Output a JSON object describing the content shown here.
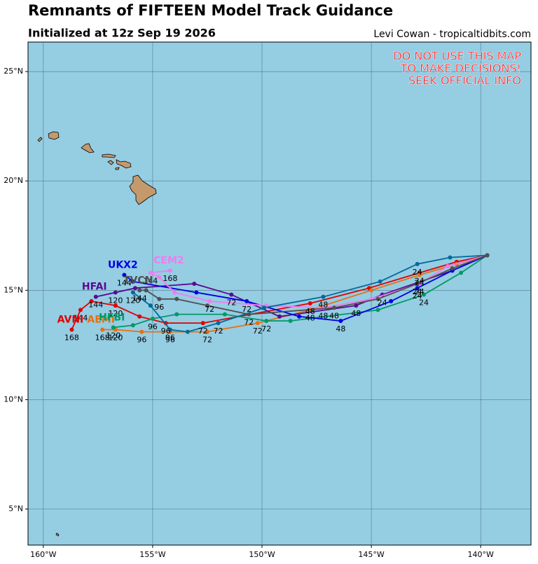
{
  "chart_data": {
    "type": "line",
    "title": "Remnants of FIFTEEN Model Track Guidance",
    "subtitle": "Initialized at 12z Sep 19 2026",
    "credit": "Levi Cowan - tropicaltidbits.com",
    "warning": [
      "DO NOT USE THIS MAP",
      "TO MAKE DECISIONS!",
      "SEEK OFFICIAL INFO"
    ],
    "xlim": [
      -160.7,
      -137.7
    ],
    "ylim": [
      3.35,
      26.35
    ],
    "xticks": [
      {
        "value": -160,
        "label": "160°W"
      },
      {
        "value": -155,
        "label": "155°W"
      },
      {
        "value": -150,
        "label": "150°W"
      },
      {
        "value": -145,
        "label": "145°W"
      },
      {
        "value": -140,
        "label": "140°W"
      }
    ],
    "yticks": [
      {
        "value": 5,
        "label": "5°N"
      },
      {
        "value": 10,
        "label": "10°N"
      },
      {
        "value": 15,
        "label": "15°N"
      },
      {
        "value": 20,
        "label": "20°N"
      },
      {
        "value": 25,
        "label": "25°N"
      }
    ],
    "grid": true,
    "series": [
      {
        "name": "AVNI",
        "color": "#e00000",
        "x": [
          -139.7,
          -141.1,
          -142.8,
          -145.1,
          -147.8,
          -152.7,
          -154.4,
          -155.6,
          -156.7,
          -157.8,
          -158.3,
          -158.7
        ],
        "values": [
          16.6,
          16.3,
          15.8,
          15.1,
          14.4,
          13.5,
          13.5,
          13.8,
          14.3,
          14.5,
          14.1,
          13.2
        ],
        "hour_labels": [
          null,
          null,
          24,
          null,
          48,
          72,
          96,
          null,
          120,
          null,
          144,
          168
        ]
      },
      {
        "name": "AEMI",
        "color": "#e8700f",
        "x": [
          -139.7,
          -141.1,
          -142.8,
          -145.0,
          -147.8,
          -150.2,
          -152.5,
          -154.2,
          -155.5,
          -156.7,
          -157.3
        ],
        "values": [
          16.6,
          16.2,
          15.7,
          15.0,
          14.1,
          13.5,
          13.1,
          13.1,
          13.1,
          13.2,
          13.2
        ],
        "hour_labels": [
          null,
          null,
          24,
          null,
          48,
          72,
          72,
          96,
          96,
          120,
          168
        ]
      },
      {
        "name": "HFBI",
        "color": "#009966",
        "x": [
          -139.7,
          -140.9,
          -142.6,
          -144.7,
          -148.7,
          -149.8,
          -151.7,
          -153.9,
          -155.0,
          -155.9,
          -156.8
        ],
        "values": [
          16.6,
          15.8,
          14.8,
          14.1,
          13.6,
          13.6,
          13.9,
          13.9,
          13.7,
          13.4,
          13.3
        ],
        "hour_labels": [
          null,
          null,
          24,
          null,
          null,
          72,
          null,
          null,
          96,
          null,
          120
        ]
      },
      {
        "name": "HFAI",
        "color": "#5b0a91",
        "x": [
          -139.7,
          -141.3,
          -144.5,
          -145.7,
          -149.2,
          -151.4,
          -153.1,
          -155.8,
          -156.7,
          -157.6
        ],
        "values": [
          16.6,
          15.9,
          14.8,
          14.3,
          13.8,
          14.8,
          15.3,
          15.1,
          14.9,
          14.7
        ],
        "hour_labels": [
          null,
          null,
          24,
          48,
          null,
          72,
          null,
          null,
          120,
          144
        ]
      },
      {
        "name": "UKX2",
        "color": "#0000e6",
        "x": [
          -139.7,
          -141.3,
          -142.9,
          -144.1,
          -146.4,
          -148.3,
          -150.7,
          -153.0,
          -155.9,
          -156.3
        ],
        "values": [
          16.6,
          15.9,
          15.1,
          14.5,
          13.6,
          13.8,
          14.5,
          14.9,
          15.4,
          15.7
        ],
        "hour_labels": [
          null,
          null,
          24,
          null,
          48,
          null,
          72,
          null,
          null,
          144
        ]
      },
      {
        "name": "CEM2",
        "color": "#f07cf0",
        "x": [
          -139.7,
          -141.5,
          -142.8,
          -145.0,
          -147.2,
          -149.8,
          -152.4,
          -154.0,
          -154.7,
          -155.1,
          -154.2
        ],
        "values": [
          16.6,
          16.1,
          15.3,
          14.6,
          14.2,
          14.3,
          14.5,
          14.9,
          15.6,
          15.8,
          15.9
        ],
        "hour_labels": [
          null,
          null,
          24,
          null,
          48,
          null,
          72,
          null,
          null,
          144,
          168
        ]
      },
      {
        "color": "#006a9a",
        "x": [
          -139.7,
          -141.4,
          -142.9,
          -144.6,
          -147.2,
          -149.9,
          -152.0,
          -153.4,
          -154.2,
          -155.1,
          -155.9
        ],
        "values": [
          16.6,
          16.5,
          16.2,
          15.4,
          14.7,
          14.2,
          13.5,
          13.1,
          13.2,
          14.3,
          14.9
        ],
        "hour_labels": [
          null,
          null,
          24,
          null,
          48,
          null,
          72,
          null,
          96,
          null,
          120
        ]
      },
      {
        "name": "TVCN",
        "color": "#505050",
        "x": [
          -139.7,
          -141.3,
          -142.9,
          -144.7,
          -146.7,
          -150.6,
          -152.5,
          -153.9,
          -154.7,
          -155.3,
          -155.6
        ],
        "values": [
          16.6,
          16.0,
          15.3,
          14.6,
          14.2,
          13.9,
          14.3,
          14.6,
          14.6,
          15.0,
          15.0
        ],
        "hour_labels": [
          null,
          null,
          24,
          null,
          48,
          72,
          null,
          null,
          96,
          null,
          144
        ]
      }
    ]
  }
}
